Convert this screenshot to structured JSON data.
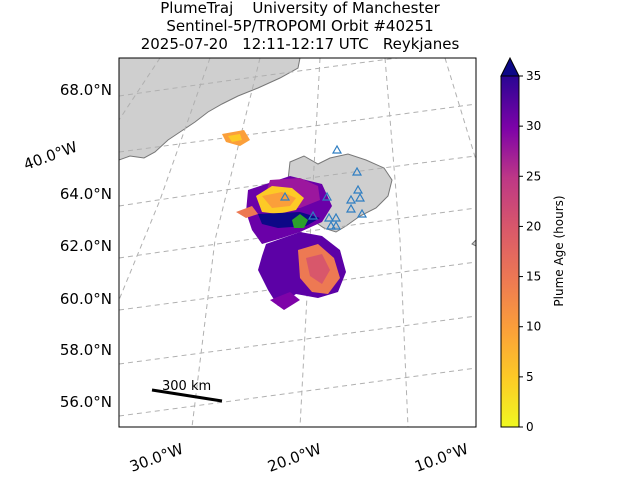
{
  "title": {
    "line1": "PlumeTraj    University of Manchester",
    "line2": "Sentinel-5P/TROPOMI Orbit #40251",
    "line3": "2025-07-20   12:11-12:17 UTC   Reykjanes"
  },
  "map": {
    "lat_labels": [
      "68.0°N",
      "64.0°N",
      "62.0°N",
      "60.0°N",
      "58.0°N",
      "56.0°N"
    ],
    "lon_labels": [
      "40.0°W",
      "30.0°W",
      "20.0°W",
      "10.0°W"
    ],
    "scale_bar_label": "300 km",
    "land_color": "#cfcfcf",
    "coast_color": "#777777",
    "grid_color": "#b0b0b0",
    "volcano_marker_color": "#2f7ec2",
    "source_marker_color": "#2ca02c"
  },
  "chart_data": {
    "type": "map",
    "colorbar": {
      "label": "Plume Age (hours)",
      "min": 0,
      "max": 35,
      "ticks": [
        "0",
        "5",
        "10",
        "15",
        "20",
        "25",
        "30",
        "35"
      ],
      "colormap": "plasma_r",
      "extend": "max"
    }
  }
}
